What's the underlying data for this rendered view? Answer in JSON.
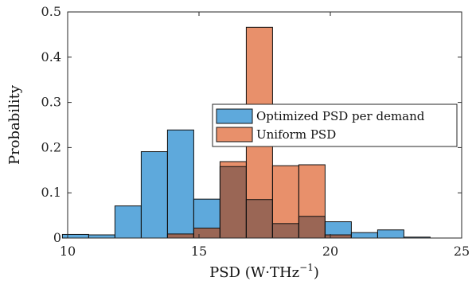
{
  "chart_data": {
    "type": "bar",
    "title": "",
    "xlabel": "PSD (W·THz",
    "xlabel_sup": "−1",
    "xlabel_close": ")",
    "ylabel": "Probability",
    "xlim": [
      10,
      25
    ],
    "ylim": [
      0,
      0.5
    ],
    "xticks": [
      10,
      15,
      20,
      25
    ],
    "yticks": [
      0,
      0.1,
      0.2,
      0.3,
      0.4,
      0.5
    ],
    "ytick_labels": [
      "0",
      "0.1",
      "0.2",
      "0.3",
      "0.4",
      "0.5"
    ],
    "grid": false,
    "legend_placement": "middle-right",
    "bin_edges": [
      9.8,
      10.8,
      11.8,
      12.8,
      13.8,
      14.8,
      15.8,
      16.8,
      17.8,
      18.8,
      19.8,
      20.8,
      21.8,
      22.8,
      23.8
    ],
    "series": [
      {
        "name": "Optimized PSD per demand",
        "color": "#5ea9dc",
        "values": [
          0.008,
          0.007,
          0.071,
          0.191,
          0.239,
          0.086,
          0.158,
          0.085,
          0.032,
          0.048,
          0.036,
          0.012,
          0.018,
          0.002
        ]
      },
      {
        "name": "Uniform PSD",
        "color": "#e8906b",
        "values": [
          0,
          0,
          0,
          0,
          0.009,
          0.022,
          0.169,
          0.466,
          0.16,
          0.162,
          0.007,
          0,
          0,
          0
        ]
      }
    ],
    "overlap_color": "#9a6655"
  }
}
